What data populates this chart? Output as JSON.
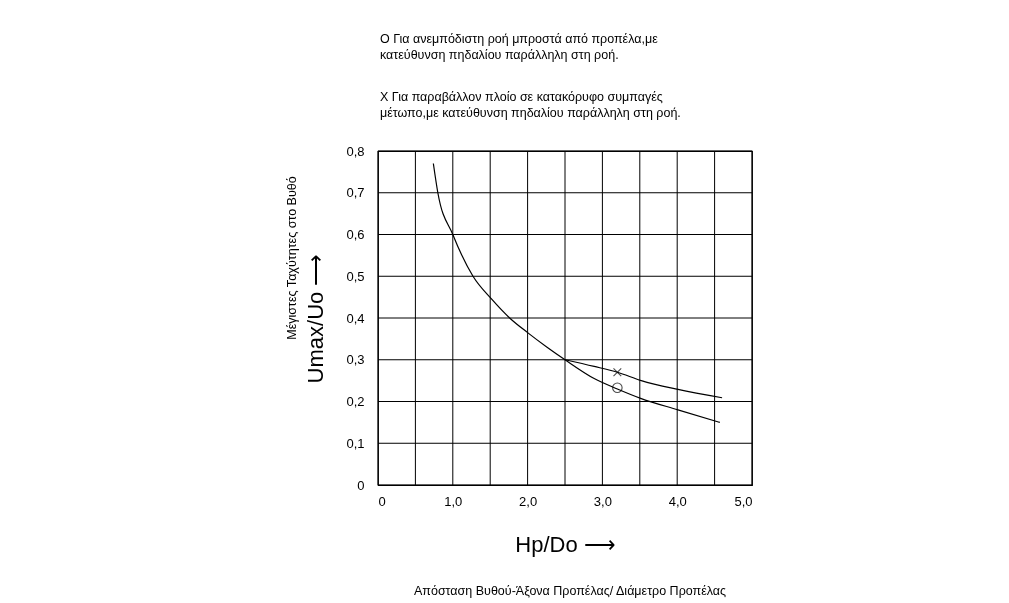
{
  "chart_data": {
    "type": "line",
    "xlabel": "Hp/Do  ⟶",
    "ylabel": "Umax/Uo  ⟶",
    "annotations": [
      "O  Για ανεμπόδιστη ροή μπροστά από προπέλα,με\nκατεύθυνση πηδαλίου παράλληλη στη ροή.",
      "X  Για παραβάλλον πλοίο σε κατακόρυφο συμπαγές\nμέτωπο,με κατεύθυνση πηδαλίου παράλληλη στη ροή.",
      "Μέγιστες Ταχύτητες στο Βυθό",
      "Απόσταση Βυθού-Άξονα Προπέλας/ Διάμετρο Προπέλας"
    ],
    "xlim": [
      0,
      5
    ],
    "ylim": [
      0,
      0.8
    ],
    "xticks": [
      0,
      {
        "value": 0.5,
        "label": null
      },
      {
        "value": 1,
        "label": "1,0"
      },
      {
        "value": 1.5,
        "label": null
      },
      {
        "value": 2,
        "label": "2,0"
      },
      {
        "value": 2.5,
        "label": null
      },
      {
        "value": 3,
        "label": "3,0"
      },
      {
        "value": 3.5,
        "label": null
      },
      {
        "value": 4,
        "label": "4,0"
      },
      {
        "value": 4.5,
        "label": null
      },
      {
        "value": 5,
        "label": "5,0"
      }
    ],
    "yticks": [
      0,
      {
        "value": 0.1,
        "label": "0,1"
      },
      {
        "value": 0.2,
        "label": "0,2"
      },
      {
        "value": 0.3,
        "label": "0,3"
      },
      {
        "value": 0.4,
        "label": "0,4"
      },
      {
        "value": 0.5,
        "label": "0,5"
      },
      {
        "value": 0.6,
        "label": "0,6"
      },
      {
        "value": 0.7,
        "label": "0,7"
      },
      {
        "value": 0.8,
        "label": "0,8"
      }
    ],
    "grid": true,
    "series": [
      {
        "color": "#000000",
        "x": [
          0.74,
          0.8,
          1.0,
          1.27,
          1.52,
          1.76,
          2.0,
          2.26,
          2.5,
          2.89,
          3.2,
          3.52,
          4.01,
          4.57
        ],
        "values": [
          0.77,
          0.7,
          0.6,
          0.5,
          0.445,
          0.4,
          0.365,
          0.33,
          0.3,
          0.255,
          0.23,
          0.207,
          0.18,
          0.15
        ]
      },
      {
        "color": "#000000",
        "x": [
          2.5,
          2.89,
          3.2,
          3.52,
          4.01,
          4.6
        ],
        "values": [
          0.3,
          0.284,
          0.27,
          0.25,
          0.229,
          0.209
        ]
      },
      {
        "type": "scatter",
        "marker": "cross",
        "color": "#000000",
        "x": [
          3.2
        ],
        "values": [
          0.27
        ]
      },
      {
        "type": "scatter",
        "marker": "circle",
        "color": "#000000",
        "x": [
          3.2
        ],
        "values": [
          0.233
        ]
      }
    ]
  }
}
